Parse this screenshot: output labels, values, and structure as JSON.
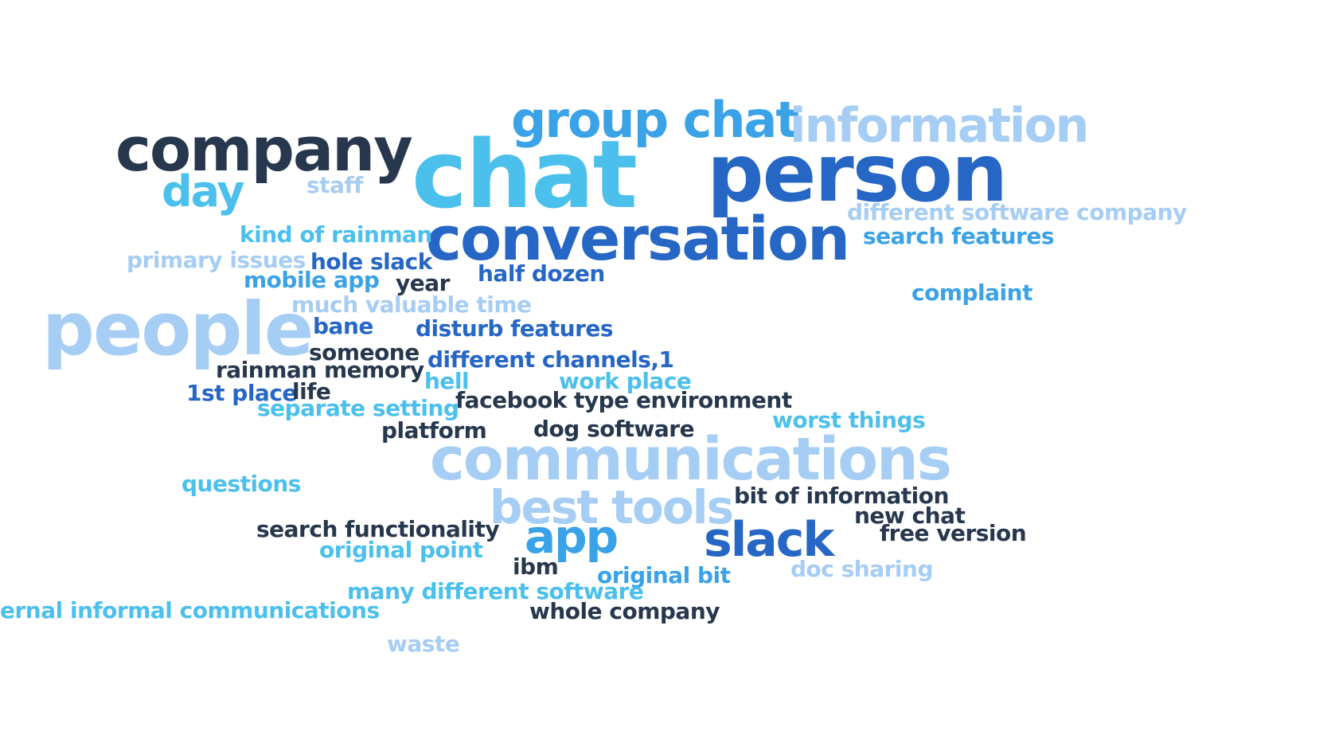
{
  "palette": {
    "navy": "#27374d",
    "blue": "#2666c4",
    "cyan": "#4cc0ec",
    "light": "#a6cdf3",
    "mid": "#3aa2e6",
    "background": "#ffffff"
  },
  "words": {
    "company": "company",
    "chat": "chat",
    "group_chat": "group chat",
    "information": "information",
    "person": "person",
    "conversation": "conversation",
    "day": "day",
    "staff": "staff",
    "different_software_company": "different software company",
    "search_features": "search features",
    "kind_of_rainman": "kind of rainman",
    "primary_issues": "primary issues",
    "hole_slack": "hole slack",
    "mobile_app": "mobile app",
    "year": "year",
    "half_dozen": "half dozen",
    "complaint": "complaint",
    "much_valuable_time": "much valuable time",
    "people": "people",
    "bane": "bane",
    "disturb_features": "disturb features",
    "someone": "someone",
    "different_channels": "different channels,1",
    "rainman_memory": "rainman memory",
    "hell": "hell",
    "work_place": "work place",
    "first_place": "1st place",
    "life": "life",
    "separate_setting": "separate setting",
    "facebook_type_environment": "facebook type environment",
    "worst_things": "worst things",
    "platform": "platform",
    "dog_software": "dog software",
    "communications": "communications",
    "questions": "questions",
    "best_tools": "best tools",
    "bit_of_information": "bit of information",
    "new_chat": "new chat",
    "search_functionality": "search functionality",
    "free_version": "free version",
    "app": "app",
    "slack": "slack",
    "original_point": "original point",
    "ibm": "ibm",
    "original_bit": "original bit",
    "doc_sharing": "doc sharing",
    "many_different_software": "many different software",
    "internal_informal_communications": "ernal informal communications",
    "whole_company": "whole company",
    "waste": "waste"
  }
}
